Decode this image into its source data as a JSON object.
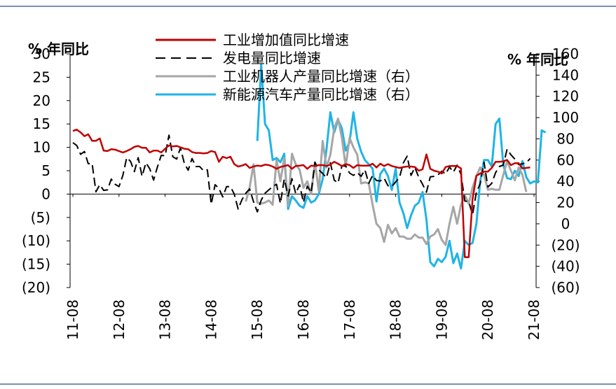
{
  "colors": {
    "border": "#4f6b9e",
    "industrial_line": "#c00000",
    "power_line": "#000000",
    "robot_line": "#a6a6a6",
    "nev_line": "#1fb4e6"
  },
  "chart_data": {
    "type": "line",
    "left_axis_title": "% 年同比",
    "right_axis_title": "% 年同比",
    "left_ylim": [
      -20,
      30
    ],
    "left_ticks": [
      "30",
      "25",
      "20",
      "15",
      "10",
      "5",
      "0",
      "(5)",
      "(10)",
      "(15)",
      "(20)"
    ],
    "right_ylim": [
      -60,
      160
    ],
    "right_ticks": [
      "160",
      "140",
      "120",
      "100",
      "80",
      "60",
      "40",
      "20",
      "0",
      "(20)",
      "(40)",
      "(60)"
    ],
    "x_ticks": [
      "11-08",
      "12-08",
      "13-08",
      "14-08",
      "15-08",
      "16-08",
      "17-08",
      "18-08",
      "19-08",
      "20-08",
      "21-08"
    ],
    "legend_position": "top",
    "series": [
      {
        "name": "工业增加值同比增速",
        "axis": "left",
        "style": "solid",
        "color_key": "industrial_line",
        "start": "2011-08",
        "values": [
          13.5,
          13.8,
          13.2,
          12.4,
          12.8,
          11.4,
          11.4,
          11.9,
          9.3,
          9.2,
          9.6,
          9.5,
          9.2,
          8.9,
          9.2,
          9.6,
          10.1,
          10.3,
          9.9,
          9.9,
          8.9,
          9.3,
          9.3,
          8.9,
          9.7,
          10.4,
          10.2,
          10.3,
          10.0,
          9.7,
          9.6,
          9.0,
          8.8,
          8.8,
          8.7,
          8.8,
          9.2,
          9.0,
          6.9,
          8.0,
          7.7,
          8.0,
          6.4,
          5.9,
          6.1,
          6.4,
          5.6,
          5.9,
          6.1,
          6.0,
          6.3,
          6.2,
          5.9,
          5.4,
          5.8,
          6.0,
          6.2,
          5.4,
          6.0,
          6.1,
          6.2,
          5.4,
          6.1,
          6.0,
          6.2,
          6.2,
          6.0,
          6.3,
          6.9,
          6.5,
          6.0,
          6.4,
          6.2,
          5.6,
          6.2,
          6.1,
          6.1,
          6.1,
          6.5,
          5.7,
          6.5,
          6.0,
          6.4,
          6.0,
          5.8,
          5.6,
          5.8,
          5.9,
          5.9,
          5.8,
          5.0,
          5.3,
          8.5,
          5.4,
          5.0,
          4.8,
          4.4,
          5.8,
          6.0,
          6.0,
          6.0,
          5.5,
          -13.5,
          -13.5,
          -1.1,
          3.9,
          4.4,
          4.8,
          4.8,
          5.6,
          6.9,
          6.9,
          7.0,
          7.3,
          6.2,
          6.6,
          6.6,
          5.5,
          5.6,
          5.7
        ]
      },
      {
        "name": "发电量同比增速",
        "axis": "left",
        "style": "dashed",
        "color_key": "power_line",
        "start": "2011-08",
        "values": [
          11.0,
          10.4,
          8.5,
          9.1,
          6.5,
          6.6,
          0.5,
          2.0,
          0.8,
          0.9,
          3.2,
          2.1,
          1.6,
          4.0,
          7.8,
          7.0,
          4.8,
          7.8,
          3.8,
          6.7,
          5.4,
          3.0,
          5.8,
          8.3,
          8.2,
          12.6,
          8.0,
          7.5,
          9.9,
          6.6,
          5.1,
          7.6,
          5.9,
          5.9,
          5.0,
          5.2,
          -2.2,
          2.0,
          1.2,
          -0.6,
          1.6,
          1.6,
          0.0,
          -3.2,
          -1.2,
          0.2,
          1.1,
          -1.6,
          -3.8,
          -1.3,
          0.2,
          0.9,
          1.6,
          2.1,
          -2.0,
          3.2,
          -0.4,
          3.3,
          0.1,
          2.0,
          -1.8,
          1.7,
          0.3,
          6.8,
          5.2,
          4.4,
          3.5,
          6.7,
          3.0,
          2.4,
          6.0,
          6.0,
          4.5,
          4.0,
          4.6,
          3.8,
          5.2,
          2.3,
          4.0,
          2.9,
          2.8,
          3.4,
          1.8,
          1.6,
          2.6,
          3.6,
          6.7,
          8.1,
          4.0,
          5.7,
          3.6,
          2.1,
          0.4,
          3.7,
          3.8,
          4.1,
          4.9,
          4.3,
          5.8,
          4.7,
          6.2,
          4.2,
          -1.5,
          -1.6,
          -4.4,
          0.4,
          2.2,
          6.8,
          1.5,
          2.3,
          4.6,
          5.9,
          6.2,
          9.6,
          8.4,
          7.5,
          6.3,
          6.5,
          6.7,
          7.6
        ]
      },
      {
        "name": "工业机器人产量同比增速（右）",
        "axis": "right",
        "style": "solid",
        "color_key": "robot_line",
        "start": "2015-05",
        "values": [
          21.0,
          34.0,
          56.0,
          20.0,
          19.0,
          20.0,
          22.0,
          18.0,
          60.0,
          40.0,
          62.0,
          17.0,
          66.0,
          56.0,
          51.0,
          34.0,
          40.0,
          28.0,
          58.0,
          31.0,
          78.0,
          53.0,
          65.0,
          90.0,
          99.0,
          81.0,
          54.0,
          81.0,
          72.0,
          65.0,
          38.0,
          39.0,
          38.0,
          18.0,
          0.0,
          -4.0,
          -17.0,
          -1.0,
          -9.0,
          -4.0,
          -12.0,
          -12.0,
          -14.0,
          -14.0,
          -10.0,
          -13.0,
          -13.0,
          -19.0,
          -12.0,
          -10.0,
          -5.0,
          -15.0,
          -20.0,
          0.0,
          16.0,
          0.0,
          18.0,
          27.0,
          19.0,
          34.0,
          45.0,
          53.0,
          46.0,
          32.0,
          33.0,
          32.0,
          32.0,
          46.0,
          59.0,
          50.0,
          41.0,
          53.0,
          46.0,
          30.0
        ]
      },
      {
        "name": "新能源汽车产量同比增速（右）",
        "axis": "right",
        "style": "solid",
        "color_key": "nev_line",
        "start": "2015-08",
        "values": [
          78.0,
          150.0,
          94.0,
          88.0,
          60.0,
          62.0,
          58.0,
          66.0,
          14.0,
          26.0,
          22.0,
          17.0,
          15.0,
          26.0,
          20.0,
          22.0,
          28.0,
          42.0,
          70.0,
          105.0,
          86.0,
          98.0,
          90.0,
          69.0,
          77.0,
          105.0,
          80.0,
          68.0,
          60.0,
          56.0,
          52.0,
          21.0,
          47.0,
          52.0,
          45.0,
          32.0,
          52.0,
          20.0,
          10.0,
          -4.0,
          8.0,
          17.0,
          20.0,
          30.0,
          4.0,
          -36.0,
          -40.0,
          -33.0,
          -36.0,
          -31.0,
          -16.0,
          -37.0,
          -28.0,
          -42.0,
          -16.0,
          -20.0,
          -18.0,
          0.0,
          40.0,
          60.0,
          60.0,
          54.0,
          94.0,
          99.0,
          56.0,
          43.0,
          42.0,
          50.0,
          45.0,
          59.0,
          44.0,
          38.0,
          40.0,
          39.0,
          88.0,
          86.0
        ]
      }
    ]
  }
}
